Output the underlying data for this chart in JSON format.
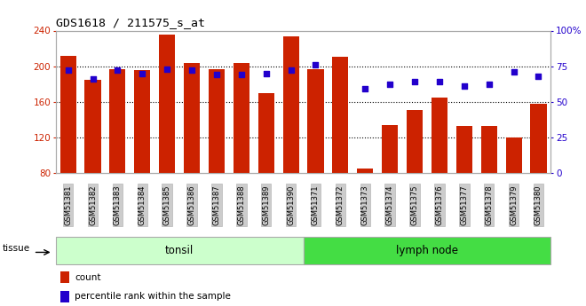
{
  "title": "GDS1618 / 211575_s_at",
  "samples": [
    "GSM51381",
    "GSM51382",
    "GSM51383",
    "GSM51384",
    "GSM51385",
    "GSM51386",
    "GSM51387",
    "GSM51388",
    "GSM51389",
    "GSM51390",
    "GSM51371",
    "GSM51372",
    "GSM51373",
    "GSM51374",
    "GSM51375",
    "GSM51376",
    "GSM51377",
    "GSM51378",
    "GSM51379",
    "GSM51380"
  ],
  "counts": [
    212,
    185,
    197,
    196,
    236,
    204,
    197,
    204,
    170,
    234,
    197,
    211,
    85,
    134,
    151,
    165,
    133,
    133,
    120,
    158
  ],
  "percentiles": [
    72,
    66,
    72,
    70,
    73,
    72,
    69,
    69,
    70,
    72,
    76,
    null,
    59,
    62,
    64,
    64,
    61,
    62,
    71,
    68
  ],
  "y_min": 80,
  "y_max": 240,
  "y_ticks": [
    80,
    120,
    160,
    200,
    240
  ],
  "y2_ticks": [
    0,
    25,
    50,
    75,
    100
  ],
  "tonsil_count": 10,
  "lymph_count": 10,
  "tissue_label": "tissue",
  "group1_label": "tonsil",
  "group2_label": "lymph node",
  "legend_count": "count",
  "legend_pct": "percentile rank within the sample",
  "bar_color": "#cc2200",
  "dot_color": "#2200cc",
  "bg_color": "#cccccc",
  "tonsil_bg": "#ccffcc",
  "lymph_bg": "#44dd44",
  "spine_color": "#aaaaaa"
}
